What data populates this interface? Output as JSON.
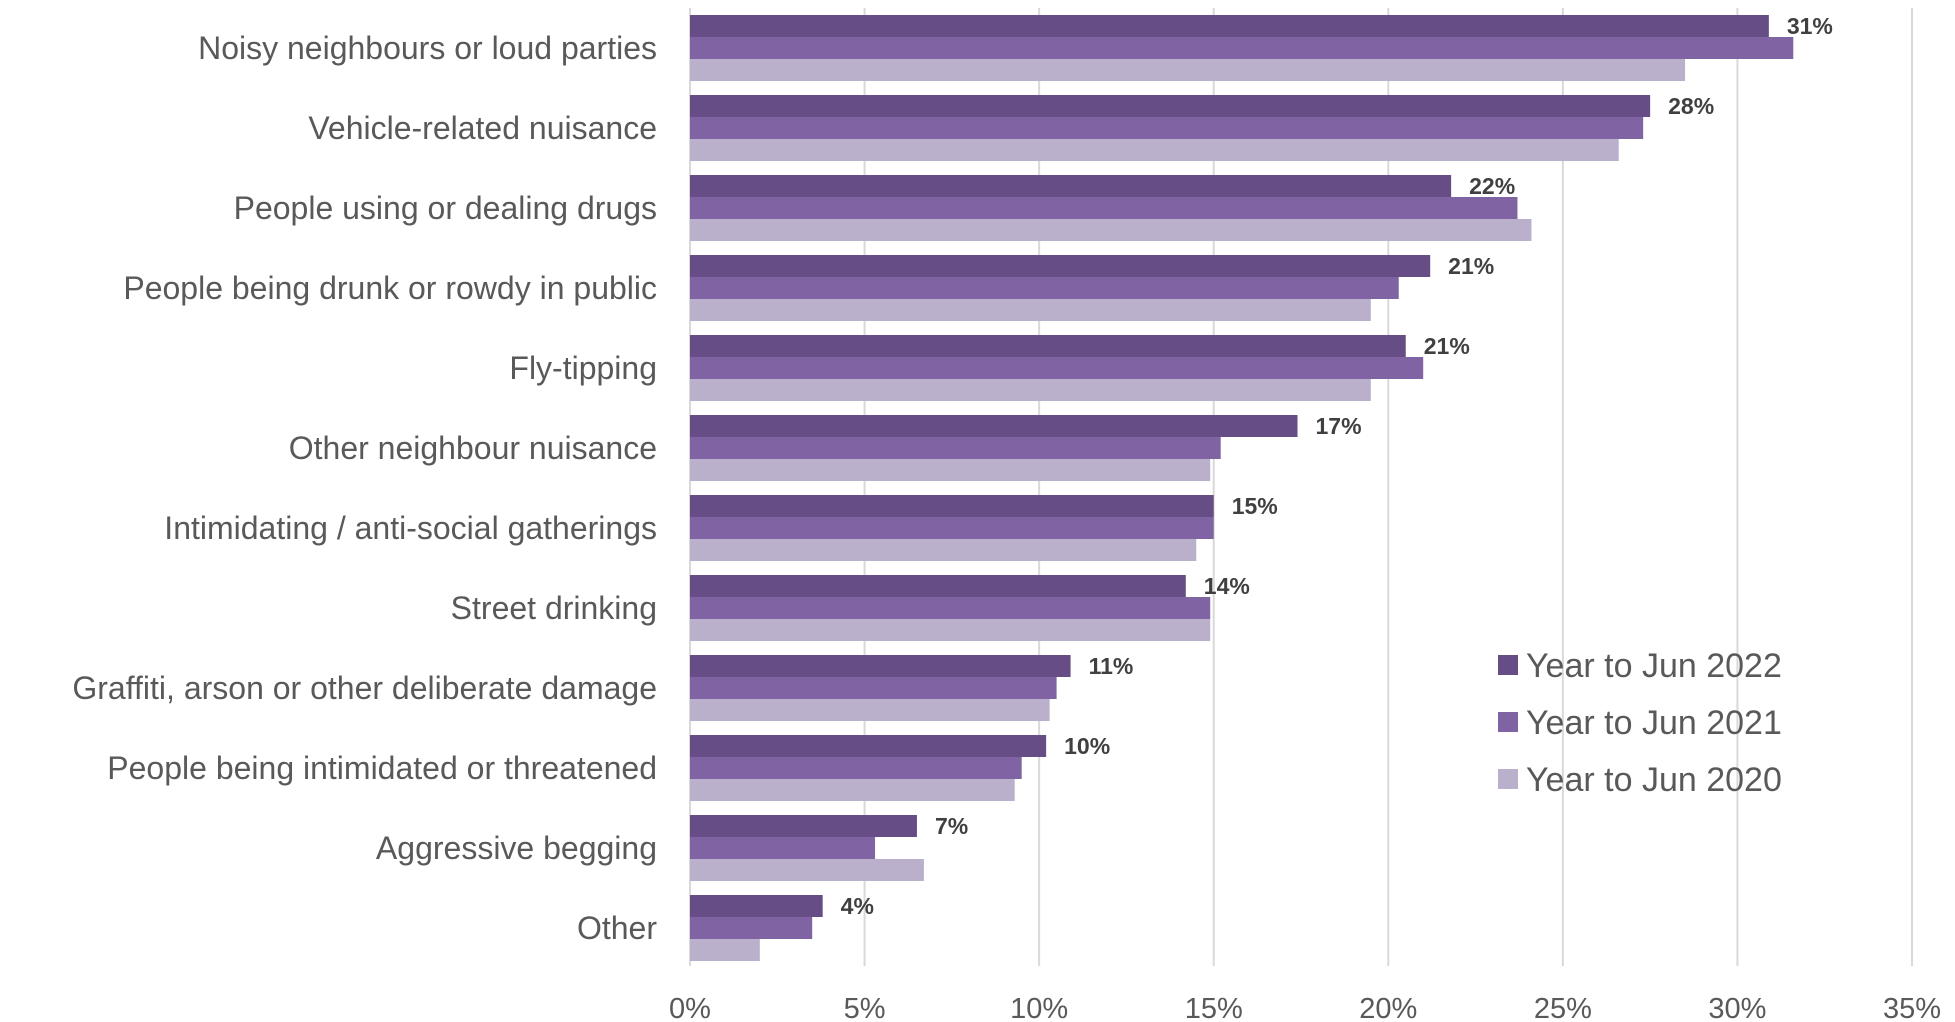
{
  "chart_data": {
    "type": "bar",
    "orientation": "horizontal",
    "categories": [
      "Noisy neighbours or loud parties",
      "Vehicle-related nuisance",
      "People using or dealing drugs",
      "People being drunk or rowdy in public",
      "Fly-tipping",
      "Other neighbour nuisance",
      "Intimidating / anti-social gatherings",
      "Street drinking",
      "Graffiti, arson or other deliberate damage",
      "People being intimidated or threatened",
      "Aggressive begging",
      "Other"
    ],
    "series": [
      {
        "name": "Year to Jun 2022",
        "color": "#674d85",
        "values": [
          30.9,
          27.5,
          21.8,
          21.2,
          20.5,
          17.4,
          15.0,
          14.2,
          10.9,
          10.2,
          6.5,
          3.8
        ]
      },
      {
        "name": "Year to Jun 2021",
        "color": "#8063a3",
        "values": [
          31.6,
          27.3,
          23.7,
          20.3,
          21.0,
          15.2,
          15.0,
          14.9,
          10.5,
          9.5,
          5.3,
          3.5
        ]
      },
      {
        "name": "Year to Jun 2020",
        "color": "#bbb0cc",
        "values": [
          28.5,
          26.6,
          24.1,
          19.5,
          19.5,
          14.9,
          14.5,
          14.9,
          10.3,
          9.3,
          6.7,
          2.0
        ]
      }
    ],
    "data_labels": [
      "31%",
      "28%",
      "22%",
      "21%",
      "21%",
      "17%",
      "15%",
      "14%",
      "11%",
      "10%",
      "7%",
      "4%"
    ],
    "xlim": [
      0,
      35
    ],
    "xticks": [
      0,
      5,
      10,
      15,
      20,
      25,
      30,
      35
    ],
    "xtick_labels": [
      "0%",
      "5%",
      "10%",
      "15%",
      "20%",
      "25%",
      "30%",
      "35%"
    ],
    "grid": true,
    "legend_position": "bottom-right",
    "title": "",
    "xlabel": "",
    "ylabel": ""
  }
}
